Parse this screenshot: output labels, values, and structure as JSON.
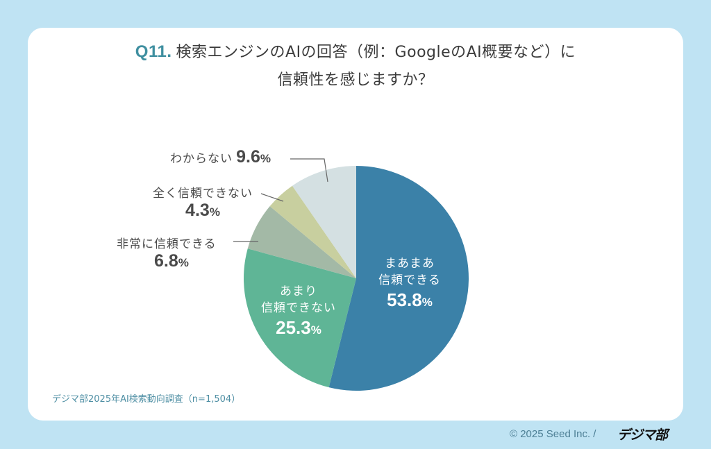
{
  "title": {
    "question_number": "Q11.",
    "line1": "検索エンジンのAIの回答（例：GoogleのAI概要など）に",
    "line2": "信頼性を感じますか？"
  },
  "source": "デジマ部2025年AI検索動向調査（n=1,504）",
  "footer": {
    "copyright": "© 2025 Seed Inc. /",
    "brand": "デジマ部"
  },
  "colors": {
    "background": "#bfe3f3",
    "card": "#ffffff",
    "accent": "#3f8fa0",
    "leader_line": "#666666"
  },
  "labels": {
    "s0": {
      "line1": "まあまあ",
      "line2": "信頼できる",
      "value": "53.8",
      "unit": "%"
    },
    "s1": {
      "line1": "あまり",
      "line2": "信頼できない",
      "value": "25.3",
      "unit": "%"
    },
    "s2": {
      "name": "非常に信頼できる",
      "value": "6.8",
      "unit": "%"
    },
    "s3": {
      "name": "全く信頼できない",
      "value": "4.3",
      "unit": "%"
    },
    "s4": {
      "name": "わからない",
      "value": "9.6",
      "unit": "%"
    }
  },
  "chart_data": {
    "type": "pie",
    "title": "Q11. 検索エンジンのAIの回答（例：GoogleのAI概要など）に信頼性を感じますか？",
    "start_angle": "12 o'clock",
    "direction": "clockwise",
    "categories": [
      "まあまあ信頼できる",
      "あまり信頼できない",
      "非常に信頼できる",
      "全く信頼できない",
      "わからない"
    ],
    "values": [
      53.8,
      25.3,
      6.8,
      4.3,
      9.6
    ],
    "unit": "%",
    "colors": [
      "#3b81a8",
      "#5fb596",
      "#a3b9a6",
      "#c8cf9f",
      "#d4e0e2"
    ],
    "n": 1504,
    "source": "デジマ部2025年AI検索動向調査（n=1,504）"
  }
}
